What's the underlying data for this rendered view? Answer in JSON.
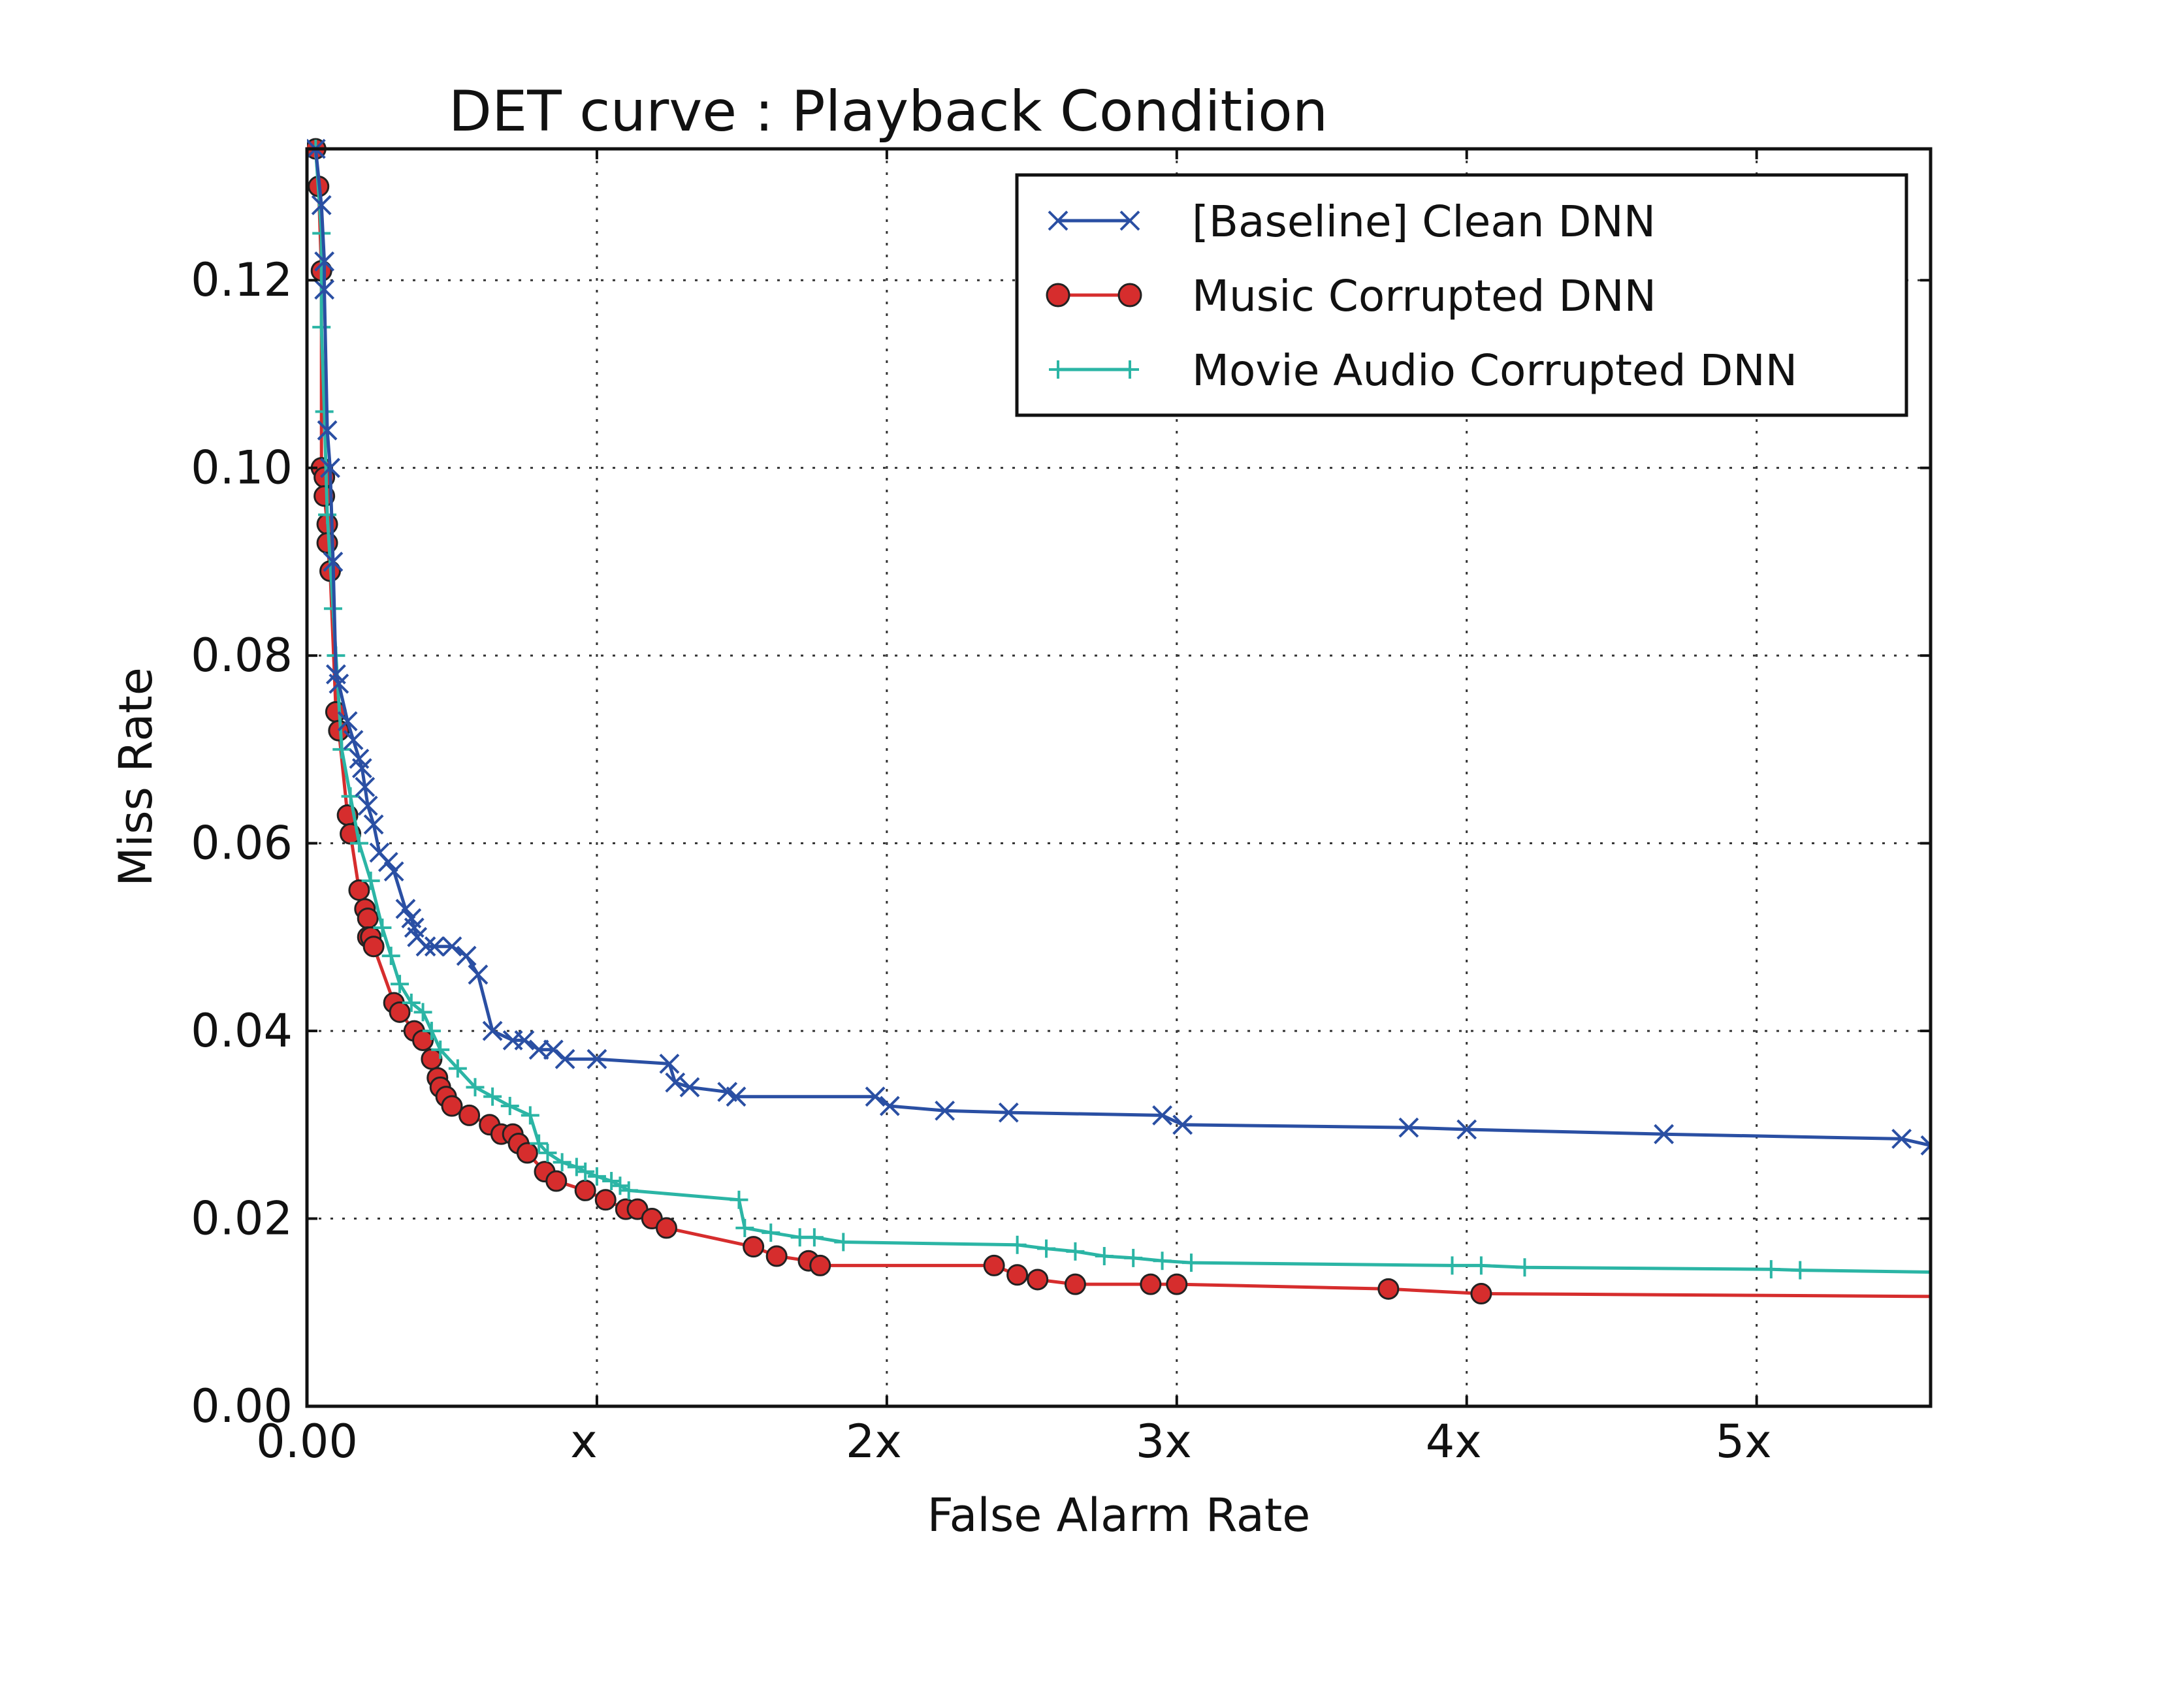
{
  "chart_data": {
    "type": "line",
    "title": "DET curve  :  Playback Condition",
    "xlabel": "False Alarm Rate",
    "ylabel": "Miss Rate",
    "xlim": [
      0,
      5.6
    ],
    "ylim": [
      0,
      0.134
    ],
    "x_ticks": [
      {
        "value": 0,
        "label": "0.00"
      },
      {
        "value": 1,
        "label": "x"
      },
      {
        "value": 2,
        "label": "2x"
      },
      {
        "value": 3,
        "label": "3x"
      },
      {
        "value": 4,
        "label": "4x"
      },
      {
        "value": 5,
        "label": "5x"
      }
    ],
    "y_ticks": [
      {
        "value": 0.0,
        "label": "0.00"
      },
      {
        "value": 0.02,
        "label": "0.02"
      },
      {
        "value": 0.04,
        "label": "0.04"
      },
      {
        "value": 0.06,
        "label": "0.06"
      },
      {
        "value": 0.08,
        "label": "0.08"
      },
      {
        "value": 0.1,
        "label": "0.10"
      },
      {
        "value": 0.12,
        "label": "0.12"
      }
    ],
    "grid": true,
    "legend_position": "top-right",
    "series": [
      {
        "name": "[Baseline]  Clean  DNN",
        "color": "#2a4fa3",
        "marker": "x",
        "x": [
          0.03,
          0.05,
          0.06,
          0.06,
          0.07,
          0.08,
          0.09,
          0.1,
          0.11,
          0.14,
          0.16,
          0.18,
          0.19,
          0.2,
          0.21,
          0.23,
          0.25,
          0.28,
          0.3,
          0.34,
          0.36,
          0.37,
          0.38,
          0.41,
          0.44,
          0.5,
          0.55,
          0.59,
          0.64,
          0.71,
          0.75,
          0.8,
          0.85,
          0.89,
          1.0,
          1.25,
          1.27,
          1.32,
          1.45,
          1.48,
          1.96,
          2.01,
          2.2,
          2.42,
          2.95,
          3.02,
          3.8,
          4.0,
          4.68,
          5.5,
          5.6
        ],
        "y": [
          0.134,
          0.128,
          0.122,
          0.119,
          0.104,
          0.1,
          0.09,
          0.078,
          0.077,
          0.073,
          0.071,
          0.069,
          0.068,
          0.066,
          0.064,
          0.062,
          0.059,
          0.058,
          0.057,
          0.053,
          0.052,
          0.051,
          0.05,
          0.049,
          0.049,
          0.049,
          0.048,
          0.046,
          0.04,
          0.039,
          0.039,
          0.038,
          0.038,
          0.037,
          0.037,
          0.0365,
          0.0345,
          0.034,
          0.0335,
          0.033,
          0.033,
          0.032,
          0.0315,
          0.0313,
          0.031,
          0.03,
          0.0297,
          0.0295,
          0.029,
          0.0285,
          0.0278
        ]
      },
      {
        "name": "Music Corrupted DNN",
        "color": "#d62d2d",
        "marker": "o",
        "x": [
          0.03,
          0.04,
          0.05,
          0.05,
          0.06,
          0.06,
          0.07,
          0.07,
          0.08,
          0.1,
          0.11,
          0.14,
          0.15,
          0.18,
          0.2,
          0.21,
          0.21,
          0.22,
          0.23,
          0.3,
          0.32,
          0.37,
          0.4,
          0.43,
          0.45,
          0.46,
          0.48,
          0.5,
          0.56,
          0.63,
          0.67,
          0.71,
          0.73,
          0.76,
          0.82,
          0.86,
          0.96,
          1.03,
          1.1,
          1.14,
          1.19,
          1.24,
          1.54,
          1.62,
          1.73,
          1.77,
          2.37,
          2.45,
          2.52,
          2.65,
          2.91,
          3.0,
          3.73,
          4.05,
          5.6
        ],
        "y": [
          0.134,
          0.13,
          0.121,
          0.1,
          0.099,
          0.097,
          0.094,
          0.092,
          0.089,
          0.074,
          0.072,
          0.063,
          0.061,
          0.055,
          0.053,
          0.052,
          0.05,
          0.05,
          0.049,
          0.043,
          0.042,
          0.04,
          0.039,
          0.037,
          0.035,
          0.034,
          0.033,
          0.032,
          0.031,
          0.03,
          0.029,
          0.029,
          0.028,
          0.027,
          0.025,
          0.024,
          0.023,
          0.022,
          0.021,
          0.021,
          0.02,
          0.019,
          0.017,
          0.016,
          0.0155,
          0.015,
          0.015,
          0.014,
          0.0135,
          0.013,
          0.013,
          0.013,
          0.0125,
          0.012,
          0.0117
        ]
      },
      {
        "name": "Movie Audio Corrupted DNN",
        "color": "#2bb5a5",
        "marker": "+",
        "x": [
          0.03,
          0.05,
          0.05,
          0.06,
          0.07,
          0.09,
          0.1,
          0.12,
          0.15,
          0.18,
          0.22,
          0.26,
          0.29,
          0.32,
          0.36,
          0.4,
          0.43,
          0.46,
          0.52,
          0.58,
          0.64,
          0.7,
          0.77,
          0.8,
          0.83,
          0.88,
          0.93,
          0.96,
          1.0,
          1.05,
          1.08,
          1.11,
          1.49,
          1.51,
          1.6,
          1.7,
          1.75,
          1.85,
          2.45,
          2.55,
          2.65,
          2.75,
          2.85,
          2.95,
          3.05,
          3.95,
          4.05,
          4.2,
          5.05,
          5.15,
          5.6
        ],
        "y": [
          0.134,
          0.125,
          0.115,
          0.106,
          0.095,
          0.085,
          0.08,
          0.07,
          0.065,
          0.06,
          0.056,
          0.051,
          0.048,
          0.045,
          0.043,
          0.042,
          0.04,
          0.038,
          0.036,
          0.034,
          0.033,
          0.032,
          0.031,
          0.028,
          0.027,
          0.026,
          0.0255,
          0.025,
          0.0245,
          0.024,
          0.0235,
          0.023,
          0.022,
          0.019,
          0.0185,
          0.018,
          0.018,
          0.0175,
          0.0172,
          0.0168,
          0.0165,
          0.016,
          0.0158,
          0.0155,
          0.0153,
          0.015,
          0.015,
          0.0148,
          0.0146,
          0.0145,
          0.0143
        ]
      }
    ]
  }
}
